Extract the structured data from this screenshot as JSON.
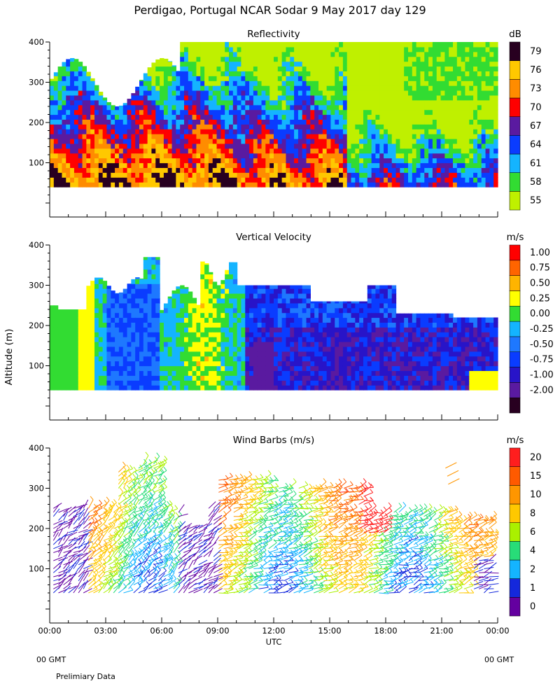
{
  "title": "Perdigao, Portugal  NCAR Sodar   9 May 2017  day 129",
  "ylabel": "Altitude (m)",
  "xlabel": "UTC",
  "x_ticks": [
    "00:00",
    "03:00",
    "06:00",
    "09:00",
    "12:00",
    "15:00",
    "18:00",
    "21:00",
    "00:00"
  ],
  "y_ticks": [
    "100",
    "200",
    "300",
    "400"
  ],
  "footer": {
    "left_gmt": "00 GMT",
    "right_gmt": "00 GMT",
    "note": "Prelimiary Data"
  },
  "chart_data": [
    {
      "type": "heatmap",
      "title": "Reflectivity",
      "unit": "dB",
      "x_range_hours": [
        0,
        24
      ],
      "y_range_m": [
        0,
        400
      ],
      "colorbar": {
        "labels": [
          "55",
          "58",
          "61",
          "64",
          "67",
          "70",
          "73",
          "76",
          "79"
        ],
        "colors": [
          "#bff000",
          "#32dc32",
          "#14b4ff",
          "#0a3cff",
          "#5a1aa0",
          "#ff0000",
          "#ff8c00",
          "#ffc800",
          "#280020"
        ]
      }
    },
    {
      "type": "heatmap",
      "title": "Vertical Velocity",
      "unit": "m/s",
      "x_range_hours": [
        0,
        24
      ],
      "y_range_m": [
        0,
        400
      ],
      "colorbar": {
        "labels": [
          "-2.00",
          "-1.00",
          "-0.75",
          "-0.50",
          "-0.25",
          "0.00",
          "0.25",
          "0.50",
          "0.75",
          "1.00"
        ],
        "colors": [
          "#280020",
          "#5a1aa0",
          "#2814c8",
          "#0a3cff",
          "#1e78ff",
          "#14b4ff",
          "#32dc32",
          "#ffff00",
          "#ffb400",
          "#ff6400",
          "#ff0000"
        ]
      }
    },
    {
      "type": "scatter",
      "title": "Wind Barbs (m/s)",
      "unit": "m/s",
      "x_range_hours": [
        0,
        24
      ],
      "y_range_m": [
        0,
        400
      ],
      "colorbar": {
        "labels": [
          "0",
          "1",
          "2",
          "4",
          "6",
          "8",
          "10",
          "15",
          "20"
        ],
        "colors": [
          "#6400a0",
          "#1428dc",
          "#14b4ff",
          "#28dc78",
          "#aaf000",
          "#ffc800",
          "#ff9600",
          "#ff5a00",
          "#ff1e1e"
        ]
      }
    }
  ]
}
